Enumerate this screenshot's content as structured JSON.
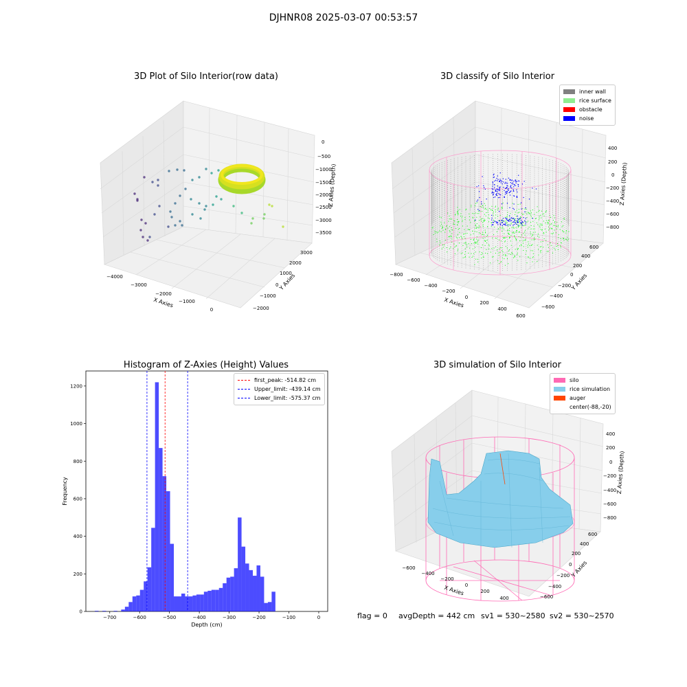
{
  "figure": {
    "suptitle": "DJHNR08 2025-03-07 00:53:57"
  },
  "chart_data": [
    {
      "type": "scatter",
      "projection": "3d",
      "title": "3D Plot of Silo Interior(row data)",
      "xlabel": "X Axies",
      "ylabel": "Y Axies",
      "zlabel": "Z Axies (Depth)",
      "xticks": [
        "−4000",
        "−3000",
        "−2000",
        "−1000",
        "0"
      ],
      "yticks": [
        "−2000",
        "−1000",
        "0",
        "1000",
        "2000",
        "3000"
      ],
      "zticks": [
        "0",
        "−500",
        "−1000",
        "−1500",
        "−2000",
        "−2500",
        "−3000",
        "−3500"
      ],
      "colormap": "viridis",
      "grid": true
    },
    {
      "type": "scatter",
      "projection": "3d",
      "title": "3D classify of Silo Interior",
      "xlabel": "X Axies",
      "ylabel": "Y Axies",
      "zlabel": "Z Axies (Depth)",
      "xticks": [
        "−800",
        "−600",
        "−400",
        "−200",
        "0",
        "200",
        "400",
        "600"
      ],
      "yticks": [
        "−600",
        "−400",
        "−200",
        "0",
        "200",
        "400",
        "600"
      ],
      "zticks": [
        "400",
        "200",
        "0",
        "−200",
        "−400",
        "−600",
        "−800"
      ],
      "legend": [
        {
          "label": "inner wall",
          "color": "#808080"
        },
        {
          "label": "rice surface",
          "color": "#90ee90"
        },
        {
          "label": "obstacle",
          "color": "#ff0000"
        },
        {
          "label": "noise",
          "color": "#0000ff"
        }
      ],
      "legend_position": "top-right",
      "grid": true
    },
    {
      "type": "bar",
      "title": "Histogram of Z-Axies (Height) Values",
      "xlabel": "Depth (cm)",
      "ylabel": "Frequency",
      "xlim": [
        -780,
        30
      ],
      "ylim": [
        0,
        1280
      ],
      "xticks": [
        -700,
        -600,
        -500,
        -400,
        -300,
        -200,
        -100,
        0
      ],
      "yticks": [
        0,
        200,
        400,
        600,
        800,
        1000,
        1200
      ],
      "tick_labels_x": [
        "−700",
        "−600",
        "−500",
        "−400",
        "−300",
        "−200",
        "−100",
        "0"
      ],
      "tick_labels_y": [
        "0",
        "200",
        "400",
        "600",
        "800",
        "1000",
        "1200"
      ],
      "bar_color": "#0000ff",
      "bin_width": 12.6,
      "bin_start": -750,
      "values": [
        3,
        0,
        3,
        0,
        0,
        3,
        0,
        10,
        25,
        50,
        80,
        85,
        115,
        160,
        235,
        445,
        1220,
        870,
        720,
        640,
        360,
        80,
        80,
        95,
        80,
        80,
        85,
        90,
        90,
        105,
        110,
        115,
        115,
        125,
        150,
        180,
        185,
        230,
        500,
        345,
        255,
        220,
        190,
        245,
        185,
        45,
        50,
        105
      ],
      "vlines": [
        {
          "label": "first_peak: -514.82 cm",
          "x": -514.82,
          "color": "#ff0000"
        },
        {
          "label": "Upper_limit: -439.14 cm",
          "x": -439.14,
          "color": "#0000ff"
        },
        {
          "label": "Lower_limit: -575.37 cm",
          "x": -575.37,
          "color": "#0000ff"
        }
      ],
      "legend_position": "top-right"
    },
    {
      "type": "area",
      "projection": "3d",
      "title": "3D simulation of Silo Interior",
      "xlabel": "X Axies",
      "ylabel": "Y Axies",
      "zlabel": "Z Axies (Depth)",
      "xticks": [
        "−600",
        "−400",
        "−200",
        "0",
        "200",
        "400"
      ],
      "yticks": [
        "−600",
        "−400",
        "−200",
        "0",
        "200",
        "400",
        "600"
      ],
      "zticks": [
        "400",
        "200",
        "0",
        "−200",
        "−400",
        "−600",
        "−800"
      ],
      "legend": [
        {
          "label": "silo",
          "color": "#ff69b4"
        },
        {
          "label": "rice simulation",
          "color": "#87ceeb"
        },
        {
          "label": "auger",
          "color": "#ff4500"
        },
        {
          "label": "center(-88,-20)",
          "color": ""
        }
      ],
      "legend_position": "top-right",
      "grid": true
    }
  ],
  "status": {
    "flag": "flag = 0",
    "avg_depth": "avgDepth = 442 cm",
    "sv1": "sv1 = 530~2580",
    "sv2": "sv2 = 530~2570"
  }
}
